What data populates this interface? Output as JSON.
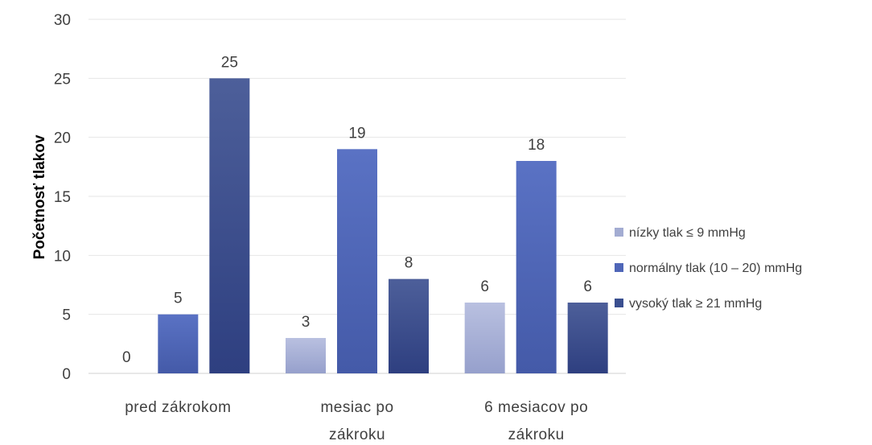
{
  "chart_data": {
    "type": "bar",
    "ylabel": "Početnosť tlakov",
    "ylim": [
      0,
      30
    ],
    "yticks": [
      0,
      5,
      10,
      15,
      20,
      25,
      30
    ],
    "categories": [
      [
        "pred zákrokom"
      ],
      [
        "mesiac po",
        "zákroku"
      ],
      [
        "6 mesiacov po",
        "zákroku"
      ]
    ],
    "series": [
      {
        "name": "nízky tlak ≤ 9 mmHg",
        "values": [
          0,
          3,
          6
        ],
        "color": "#a3acd2"
      },
      {
        "name": "normálny tlak (10 – 20) mmHg",
        "values": [
          5,
          19,
          18
        ],
        "color": "#4f66b8"
      },
      {
        "name": "vysoký tlak ≥ 21 mmHg",
        "values": [
          25,
          8,
          6
        ],
        "color": "#3a4f8f"
      }
    ],
    "grid": true,
    "legend_position": "right"
  }
}
